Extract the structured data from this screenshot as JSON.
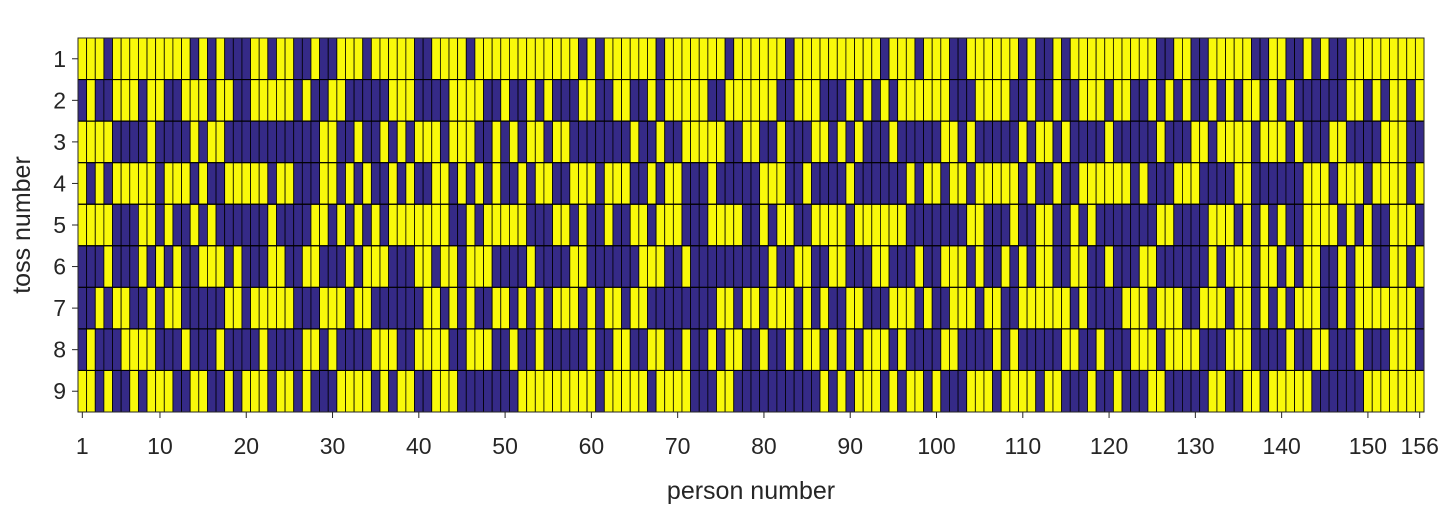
{
  "chart_data": {
    "type": "heatmap",
    "title": "",
    "xlabel": "person number",
    "ylabel": "toss number",
    "x_range": [
      1,
      156
    ],
    "y_range": [
      1,
      9
    ],
    "xticks": [
      "1",
      "10",
      "20",
      "30",
      "40",
      "50",
      "60",
      "70",
      "80",
      "90",
      "100",
      "110",
      "120",
      "130",
      "140",
      "150",
      "156"
    ],
    "xtick_values": [
      1,
      10,
      20,
      30,
      40,
      50,
      60,
      70,
      80,
      90,
      100,
      110,
      120,
      130,
      140,
      150,
      156
    ],
    "yticks": [
      "1",
      "2",
      "3",
      "4",
      "5",
      "6",
      "7",
      "8",
      "9"
    ],
    "cell_encoding": {
      "Y": "yellow",
      "B": "blue"
    },
    "colors": {
      "Y": "#f9f90a",
      "B": "#352a87",
      "grid": "#000000",
      "text": "#262626"
    },
    "rows": [
      "YYYBYYYYYYYYYBYBYBBBYYBYYBBYBBYYYBYYYYYBBYYYYBYYYYYYYYYYYYBYBYYYYYYBYYYYYYYBYYYYYYBYYYYYYYYYYBYYYBYYYBBYYYYYYBYBBYBYYYYYYYYYYBBYYBBYYYYYBBYYBBYBYBBYYYYYYYYY",
      "BYBBYYYBYYBBYYYBYYBBYYYYYBYBBYYBBBBBYYYBBBBYYYYBBYBBYBYBBBYYBBYYBBYBYYYYYBBYYYYYYBBYYYBBBYBYBYBYYYYYYBBBYYYYBBYBBYBBYYYBYYBBYBYBYBBYBYBYYBYBYBBBBBBYYBYBYYBY",
      "YYYYBBBBYBBBBYBYYBBBBBBBBBBBYYBBYBBYBYBYYYBYYYBBYBYBYYBYYBBBBBBBYBBYBBYYYYYBBYYBBYBBBYYBYBYBBBYBBBBBYYBYBBBBBYBYYBYBBBBYBBBBBYBBBYYBYYYYBYYYBYBBBYYBBBBYYYBB",
      "YBYBYYYYYBYYYBYBBYYYYYBYYBBBYYBYBYBBYBYBBYYBYBYBYBBYBYYBBYYYBYYYBBYBYYBBBYBBBBBYYYBBYBBBBYBBBBBBYBYYBYYBYYYYYBYBBYBBYYYYYYBYBBBYYYBBBBYYBBBBBBYYYBYYYBYYYYBY",
      "YYYYBBBYYBYBBYBYBBBBBBYBBBBYYBYBYBYBYYYYYYYBBYBYYYYYBBBYYBYBBYBBYYBYYYBBBYYYYBBYBYYBBYYYYBYYYYYYBBBBBBBYYBBBYBBYYBBYBYBBBBBBBYYBBBBYYYBYBYBYBBYYYYBYBYBBYYYB",
      "BBBYBBBYBYBYBBYYYBYBBBYYBBYYBBBYBYYYBBBYYBYYBYYYBBBBYBBBBYYBBBBBBYYYBBYBBBBBBBBBYBBYYBBYYBBBYYBBBYBBYYYBYBBYBYBYYBBYYBBYBBBYYBBBBBBYBYYYBYYBYBYYBBYBYYBBYYBY",
      "BBYBYYBBYBYYBBBBBYYBYYYYYBBBYYYBYYBBBBBBYYBYBYBBYYBYBYBYYYBYBYYBYYBBBBBBBBYYBYYBYYYBYBYBBYYBBBYYYBYBBYYYBYYBBYYYYYYBYBBBBYYYBYYYBBYYYBYYBYBYBYYYBBYBYYYYYYYB",
      "BYBBBYYYYBBBYBBBYBBBBYBBBBYYBYBBBBYYYBBYYYYBBYYYBBYBBYBBBBBYBBYYBBYYBBYBBYBYYBBYBBYBYYBYBYBYYYBYBBBBYYBBBBYBYBBBBBYYBBYBBBYYYBYYYYBBBYYYBBBBYBBYYBBBYBBBYYYB",
      "YYBYBBYBYYYBBYYBBYBYYYBYYBYBBBYYYYBYBYYBBYYYBBBBBBBYYYYYYYYYBYYYYYBYYYYBBBYYBBBBBBBBBBYBYBYYYBYBYYBYBBBYYYBYYYYBYYBBBYBBYBBBYYBBBBBYYBBYYBYYYYYBBBBBBYYYYYYY"
    ]
  }
}
